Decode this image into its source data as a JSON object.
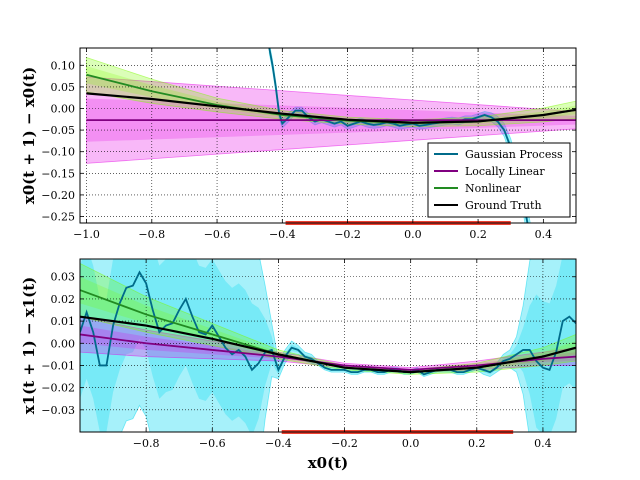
{
  "chart_data": [
    {
      "type": "line",
      "ylabel": "x0(t + 1) − x0(t)",
      "xlim": [
        -1.02,
        0.5
      ],
      "ylim": [
        -0.265,
        0.14
      ],
      "xticks": [
        "−1.0",
        "−0.8",
        "−0.6",
        "−0.4",
        "−0.2",
        "0.0",
        "0.2",
        "0.4"
      ],
      "xtick_values": [
        -1.0,
        -0.8,
        -0.6,
        -0.4,
        -0.2,
        0.0,
        0.2,
        0.4
      ],
      "yticks": [
        "0.10",
        "0.05",
        "0.00",
        "−0.05",
        "−0.10",
        "−0.15",
        "−0.20",
        "−0.25"
      ],
      "ytick_values": [
        0.1,
        0.05,
        0.0,
        -0.05,
        -0.1,
        -0.15,
        -0.2,
        -0.25
      ],
      "grid": true,
      "legend_position": "lower-right",
      "training_range": [
        -0.39,
        0.3
      ],
      "series": [
        {
          "name": "Gaussian Process",
          "color": "#006b8a",
          "band_color": "#00d8f0",
          "x": [
            -0.44,
            -0.43,
            -0.42,
            -0.41,
            -0.4,
            -0.38,
            -0.36,
            -0.34,
            -0.32,
            -0.3,
            -0.28,
            -0.26,
            -0.24,
            -0.22,
            -0.2,
            -0.18,
            -0.16,
            -0.14,
            -0.12,
            -0.1,
            -0.08,
            -0.06,
            -0.04,
            -0.02,
            0.0,
            0.02,
            0.04,
            0.06,
            0.08,
            0.1,
            0.12,
            0.14,
            0.16,
            0.18,
            0.2,
            0.22,
            0.24,
            0.26,
            0.28,
            0.3,
            0.32,
            0.34,
            0.36
          ],
          "values": [
            0.14,
            0.1,
            0.05,
            -0.01,
            -0.035,
            -0.02,
            -0.005,
            -0.005,
            -0.02,
            -0.03,
            -0.025,
            -0.03,
            -0.035,
            -0.03,
            -0.04,
            -0.035,
            -0.03,
            -0.035,
            -0.038,
            -0.036,
            -0.032,
            -0.035,
            -0.04,
            -0.037,
            -0.035,
            -0.04,
            -0.038,
            -0.035,
            -0.033,
            -0.03,
            -0.028,
            -0.03,
            -0.025,
            -0.025,
            -0.02,
            -0.015,
            -0.02,
            -0.03,
            -0.05,
            -0.09,
            -0.15,
            -0.22,
            -0.3
          ],
          "band": [
            0.012,
            0.012,
            0.012,
            0.012,
            0.01,
            0.01,
            0.008,
            0.008,
            0.008,
            0.008,
            0.008,
            0.008,
            0.008,
            0.008,
            0.008,
            0.008,
            0.008,
            0.008,
            0.008,
            0.008,
            0.008,
            0.008,
            0.008,
            0.008,
            0.008,
            0.008,
            0.008,
            0.008,
            0.008,
            0.008,
            0.008,
            0.008,
            0.008,
            0.008,
            0.008,
            0.008,
            0.01,
            0.012,
            0.015,
            0.02,
            0.025,
            0.03,
            0.035
          ]
        },
        {
          "name": "Locally Linear",
          "color": "#800080",
          "band_color": "#e600e6",
          "x": [
            -1.0,
            0.5
          ],
          "values": [
            -0.027,
            -0.027
          ],
          "band": [
            0.1,
            0.02
          ]
        },
        {
          "name": "Nonlinear",
          "color": "#228b22",
          "band_color": "#7cfc00",
          "x": [
            -1.0,
            -0.8,
            -0.6,
            -0.4,
            -0.2,
            0.0,
            0.2,
            0.4,
            0.5
          ],
          "values": [
            0.078,
            0.04,
            0.008,
            -0.015,
            -0.028,
            -0.034,
            -0.03,
            -0.015,
            -0.003
          ],
          "band": [
            0.04,
            0.028,
            0.016,
            0.01,
            0.008,
            0.008,
            0.01,
            0.016,
            0.02
          ]
        },
        {
          "name": "Ground Truth",
          "color": "#000000",
          "x": [
            -1.0,
            -0.8,
            -0.6,
            -0.4,
            -0.2,
            0.0,
            0.2,
            0.4,
            0.5
          ],
          "values": [
            0.035,
            0.022,
            0.005,
            -0.012,
            -0.026,
            -0.033,
            -0.03,
            -0.015,
            -0.003
          ]
        }
      ]
    },
    {
      "type": "line",
      "ylabel": "x1(t + 1) − x1(t)",
      "xlabel": "x0(t)",
      "xlim": [
        -1.0,
        0.5
      ],
      "ylim": [
        -0.04,
        0.038
      ],
      "xticks": [
        "−0.8",
        "−0.6",
        "−0.4",
        "−0.2",
        "0.0",
        "0.2",
        "0.4"
      ],
      "xtick_values": [
        -0.8,
        -0.6,
        -0.4,
        -0.2,
        0.0,
        0.2,
        0.4
      ],
      "yticks": [
        "0.03",
        "0.02",
        "0.01",
        "0.00",
        "−0.01",
        "−0.02",
        "−0.03"
      ],
      "ytick_values": [
        0.03,
        0.02,
        0.01,
        0.0,
        -0.01,
        -0.02,
        -0.03
      ],
      "grid": true,
      "training_range": [
        -0.39,
        0.31
      ],
      "series": [
        {
          "name": "Gaussian Process",
          "color": "#006b8a",
          "band_color": "#00d8f0",
          "x": [
            -1.0,
            -0.98,
            -0.96,
            -0.94,
            -0.92,
            -0.9,
            -0.88,
            -0.86,
            -0.84,
            -0.82,
            -0.8,
            -0.78,
            -0.76,
            -0.74,
            -0.72,
            -0.7,
            -0.68,
            -0.66,
            -0.64,
            -0.62,
            -0.6,
            -0.58,
            -0.56,
            -0.54,
            -0.52,
            -0.5,
            -0.48,
            -0.46,
            -0.44,
            -0.42,
            -0.4,
            -0.38,
            -0.36,
            -0.34,
            -0.32,
            -0.3,
            -0.28,
            -0.26,
            -0.24,
            -0.22,
            -0.2,
            -0.18,
            -0.16,
            -0.14,
            -0.12,
            -0.1,
            -0.08,
            -0.06,
            -0.04,
            -0.02,
            0.0,
            0.02,
            0.04,
            0.06,
            0.08,
            0.1,
            0.12,
            0.14,
            0.16,
            0.18,
            0.2,
            0.22,
            0.24,
            0.26,
            0.28,
            0.3,
            0.32,
            0.34,
            0.36,
            0.38,
            0.4,
            0.42,
            0.44,
            0.46,
            0.48,
            0.5
          ],
          "values": [
            0.005,
            0.014,
            0.005,
            -0.01,
            -0.01,
            0.008,
            0.018,
            0.025,
            0.026,
            0.032,
            0.027,
            0.015,
            0.005,
            0.008,
            0.009,
            0.015,
            0.02,
            0.012,
            0.005,
            0.004,
            0.008,
            0.003,
            -0.002,
            -0.005,
            -0.003,
            -0.006,
            -0.012,
            -0.009,
            -0.004,
            -0.003,
            -0.012,
            -0.006,
            -0.002,
            -0.003,
            -0.006,
            -0.007,
            -0.009,
            -0.011,
            -0.012,
            -0.012,
            -0.012,
            -0.013,
            -0.013,
            -0.012,
            -0.012,
            -0.013,
            -0.013,
            -0.012,
            -0.012,
            -0.013,
            -0.013,
            -0.012,
            -0.014,
            -0.013,
            -0.012,
            -0.012,
            -0.012,
            -0.013,
            -0.013,
            -0.012,
            -0.011,
            -0.012,
            -0.013,
            -0.011,
            -0.008,
            -0.007,
            -0.005,
            -0.003,
            -0.003,
            -0.008,
            -0.011,
            -0.012,
            -0.004,
            0.01,
            0.012,
            0.009
          ],
          "band": [
            0.06,
            0.06,
            0.06,
            0.06,
            0.06,
            0.06,
            0.06,
            0.06,
            0.06,
            0.06,
            0.06,
            0.06,
            0.06,
            0.06,
            0.06,
            0.06,
            0.06,
            0.06,
            0.06,
            0.06,
            0.06,
            0.06,
            0.06,
            0.06,
            0.06,
            0.06,
            0.06,
            0.05,
            0.03,
            0.012,
            0.004,
            0.003,
            0.003,
            0.002,
            0.002,
            0.002,
            0.001,
            0.001,
            0.001,
            0.001,
            0.001,
            0.001,
            0.001,
            0.001,
            0.001,
            0.001,
            0.001,
            0.001,
            0.001,
            0.001,
            0.001,
            0.001,
            0.001,
            0.001,
            0.001,
            0.001,
            0.001,
            0.001,
            0.001,
            0.001,
            0.001,
            0.002,
            0.002,
            0.002,
            0.003,
            0.004,
            0.008,
            0.02,
            0.04,
            0.06,
            0.06,
            0.06,
            0.06,
            0.06,
            0.06,
            0.06
          ]
        },
        {
          "name": "Locally Linear",
          "color": "#800080",
          "band_color": "#e600e6",
          "x": [
            -1.0,
            -0.8,
            -0.6,
            -0.4,
            -0.2,
            0.0,
            0.2,
            0.4,
            0.5
          ],
          "values": [
            0.004,
            0.0,
            -0.003,
            -0.006,
            -0.01,
            -0.012,
            -0.01,
            -0.007,
            -0.006
          ],
          "band": [
            0.008,
            0.006,
            0.004,
            0.002,
            0.001,
            0.001,
            0.002,
            0.003,
            0.004
          ]
        },
        {
          "name": "Nonlinear",
          "color": "#228b22",
          "band_color": "#7cfc00",
          "x": [
            -1.0,
            -0.8,
            -0.6,
            -0.4,
            -0.2,
            0.0,
            0.2,
            0.4,
            0.5
          ],
          "values": [
            0.024,
            0.013,
            0.004,
            -0.005,
            -0.011,
            -0.013,
            -0.011,
            -0.006,
            -0.002
          ],
          "band": [
            0.012,
            0.008,
            0.005,
            0.002,
            0.001,
            0.001,
            0.002,
            0.004,
            0.006
          ]
        },
        {
          "name": "Ground Truth",
          "color": "#000000",
          "x": [
            -1.0,
            -0.8,
            -0.6,
            -0.4,
            -0.2,
            0.0,
            0.2,
            0.4,
            0.5
          ],
          "values": [
            0.012,
            0.008,
            0.002,
            -0.005,
            -0.011,
            -0.013,
            -0.011,
            -0.006,
            -0.002
          ]
        }
      ]
    }
  ]
}
